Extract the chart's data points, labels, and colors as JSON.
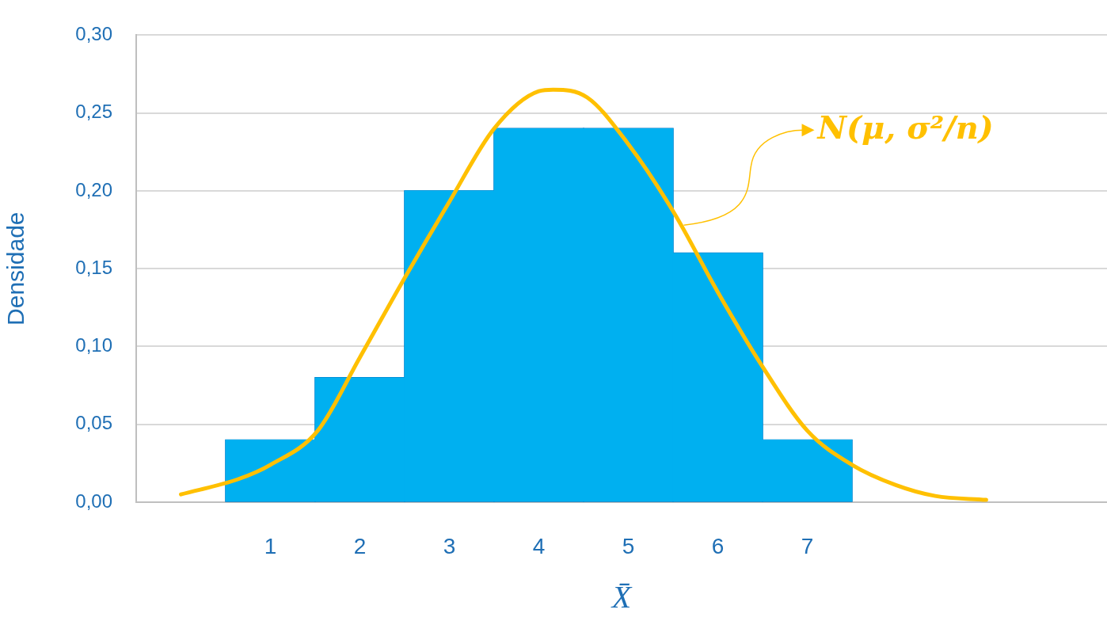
{
  "chart_data": {
    "type": "histogram",
    "xlabel": "X̄",
    "ylabel": "Densidade",
    "bins": [
      0.5,
      1.5,
      2.5,
      3.5,
      4.5,
      5.5,
      6.5,
      7.5
    ],
    "values": [
      0.04,
      0.08,
      0.2,
      0.24,
      0.24,
      0.16,
      0.04
    ],
    "color": "#00b0f0",
    "series": [
      {
        "type": "line",
        "color": "#ffc000",
        "x": [
          0,
          0.65,
          1,
          1.53,
          2,
          2.5,
          3,
          3.5,
          4,
          4.16,
          4.54,
          5,
          5.51,
          6,
          6.49,
          7,
          7.5,
          7.99,
          8.43,
          9
        ],
        "values": [
          0.005,
          0.015,
          0.024,
          0.046,
          0.093,
          0.144,
          0.193,
          0.24,
          0.264,
          0.265,
          0.26,
          0.23,
          0.186,
          0.135,
          0.088,
          0.046,
          0.024,
          0.011,
          0.004,
          0.0015
        ]
      }
    ],
    "xlim": [
      -0.5,
      10.35
    ],
    "xticks": [
      1,
      2,
      3,
      4,
      5,
      6,
      7
    ],
    "ylim": [
      0,
      0.3
    ],
    "yticks": [
      {
        "value": 0,
        "label": "0,00"
      },
      {
        "value": 0.05,
        "label": "0,05"
      },
      {
        "value": 0.1,
        "label": "0,10"
      },
      {
        "value": 0.15,
        "label": "0,15"
      },
      {
        "value": 0.2,
        "label": "0,20"
      },
      {
        "value": 0.25,
        "label": "0,25"
      },
      {
        "value": 0.3,
        "label": "0,30"
      }
    ],
    "grid": "y",
    "legend": false,
    "annotations": [
      {
        "text": "N(μ, σ²/n)",
        "x": 5.62,
        "y": 0.178
      }
    ]
  }
}
